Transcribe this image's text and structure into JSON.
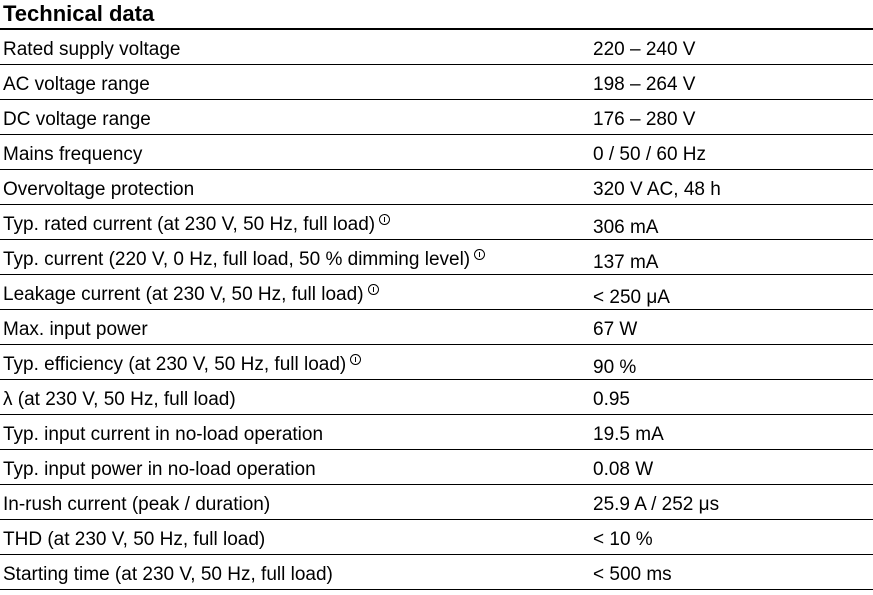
{
  "heading": "Technical data",
  "rows": [
    {
      "label": "Rated supply voltage",
      "value": "220 – 240 V",
      "note": false
    },
    {
      "label": "AC voltage range",
      "value": "198 – 264 V",
      "note": false
    },
    {
      "label": "DC voltage range",
      "value": "176 – 280 V",
      "note": false
    },
    {
      "label": "Mains frequency",
      "value": "0 / 50 / 60 Hz",
      "note": false
    },
    {
      "label": "Overvoltage protection",
      "value": "320 V AC, 48 h",
      "note": false
    },
    {
      "label": "Typ. rated current (at 230 V, 50 Hz, full load)",
      "value": "306 mA",
      "note": true
    },
    {
      "label": "Typ. current (220 V, 0 Hz, full load, 50 % dimming level)",
      "value": "137 mA",
      "note": true
    },
    {
      "label": "Leakage current (at 230 V, 50 Hz, full load)",
      "value": "< 250 μA",
      "note": true
    },
    {
      "label": "Max. input power",
      "value": "67 W",
      "note": false
    },
    {
      "label": "Typ. efficiency (at 230 V, 50 Hz, full load)",
      "value": "90 %",
      "note": true
    },
    {
      "label": "λ (at 230 V, 50 Hz, full load)",
      "value": "0.95",
      "note": false
    },
    {
      "label": "Typ. input current in no-load operation",
      "value": "19.5 mA",
      "note": false
    },
    {
      "label": "Typ. input power in no-load operation",
      "value": "0.08 W",
      "note": false
    },
    {
      "label": "In-rush current (peak / duration)",
      "value": "25.9 A / 252 μs",
      "note": false
    },
    {
      "label": "THD (at 230 V, 50 Hz, full load)",
      "value": "< 10 %",
      "note": false
    },
    {
      "label": "Starting time (at 230 V, 50 Hz, full load)",
      "value": "< 500 ms",
      "note": false
    }
  ],
  "icons": {
    "note": "info-circle-icon"
  }
}
